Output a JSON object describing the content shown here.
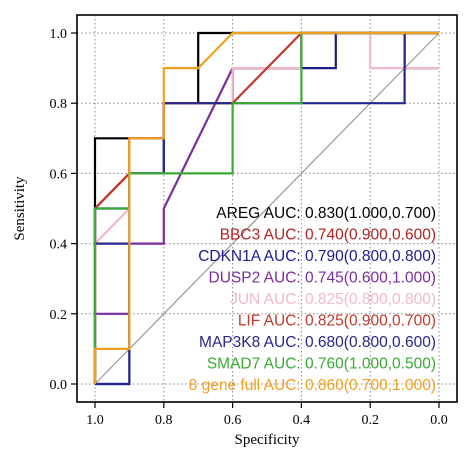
{
  "chart_data": {
    "type": "line",
    "xlabel": "Specificity",
    "ylabel": "Sensitivity",
    "xlim": [
      1.0,
      0.0
    ],
    "ylim": [
      0.0,
      1.0
    ],
    "x_ticks": [
      "1.0",
      "0.8",
      "0.6",
      "0.4",
      "0.2",
      "0.0"
    ],
    "y_ticks": [
      "0.0",
      "0.2",
      "0.4",
      "0.6",
      "0.8",
      "1.0"
    ],
    "grid": true,
    "legend_position": "bottom-right",
    "diagonal_color": "#999999",
    "series": [
      {
        "label": "AREG AUC: 0.830(1.000,0.700)",
        "color": "#000000",
        "points": [
          [
            1.0,
            0.0
          ],
          [
            1.0,
            0.7
          ],
          [
            0.8,
            0.7
          ],
          [
            0.8,
            0.8
          ],
          [
            0.7,
            0.8
          ],
          [
            0.7,
            1.0
          ],
          [
            0.0,
            1.0
          ]
        ]
      },
      {
        "label": "BBC3 AUC: 0.740(0.900,0.600)",
        "color": "#b22222",
        "points": [
          [
            1.0,
            0.0
          ],
          [
            1.0,
            0.5
          ],
          [
            0.9,
            0.6
          ],
          [
            0.9,
            0.7
          ],
          [
            0.8,
            0.7
          ],
          [
            0.8,
            0.8
          ],
          [
            0.6,
            0.8
          ],
          [
            0.6,
            0.9
          ],
          [
            0.4,
            0.9
          ],
          [
            0.4,
            1.0
          ],
          [
            0.0,
            1.0
          ]
        ]
      },
      {
        "label": "CDKN1A AUC: 0.790(0.800,0.800)",
        "color": "#1c1c8c",
        "points": [
          [
            1.0,
            0.0
          ],
          [
            0.9,
            0.0
          ],
          [
            0.9,
            0.6
          ],
          [
            0.8,
            0.6
          ],
          [
            0.8,
            0.8
          ],
          [
            0.6,
            0.8
          ],
          [
            0.6,
            0.9
          ],
          [
            0.3,
            0.9
          ],
          [
            0.3,
            1.0
          ],
          [
            0.1,
            1.0
          ],
          [
            0.1,
            0.9
          ],
          [
            0.0,
            0.9
          ]
        ]
      },
      {
        "label": "DUSP2 AUC: 0.745(0.600,1.000)",
        "color": "#7a2e9e",
        "points": [
          [
            1.0,
            0.0
          ],
          [
            1.0,
            0.2
          ],
          [
            0.9,
            0.2
          ],
          [
            0.9,
            0.4
          ],
          [
            0.8,
            0.4
          ],
          [
            0.8,
            0.5
          ],
          [
            0.6,
            0.9
          ],
          [
            0.4,
            0.9
          ],
          [
            0.4,
            1.0
          ],
          [
            0.0,
            1.0
          ]
        ]
      },
      {
        "label": "JUN AUC: 0.825(0.800,0.800)",
        "color": "#f3b9c9",
        "points": [
          [
            1.0,
            0.0
          ],
          [
            1.0,
            0.4
          ],
          [
            0.9,
            0.5
          ],
          [
            0.9,
            0.7
          ],
          [
            0.8,
            0.7
          ],
          [
            0.8,
            0.8
          ],
          [
            0.6,
            0.8
          ],
          [
            0.6,
            0.9
          ],
          [
            0.4,
            0.9
          ],
          [
            0.4,
            1.0
          ],
          [
            0.2,
            1.0
          ],
          [
            0.2,
            0.9
          ],
          [
            0.0,
            0.9
          ]
        ]
      },
      {
        "label": "LIF AUC: 0.825(0.900,0.700)",
        "color": "#c0392b",
        "points": [
          [
            1.0,
            0.0
          ],
          [
            1.0,
            0.5
          ],
          [
            0.9,
            0.6
          ],
          [
            0.9,
            0.7
          ],
          [
            0.8,
            0.7
          ],
          [
            0.8,
            0.8
          ],
          [
            0.6,
            0.8
          ],
          [
            0.4,
            1.0
          ],
          [
            0.0,
            1.0
          ]
        ]
      },
      {
        "label": "MAP3K8 AUC: 0.680(0.800,0.600)",
        "color": "#26268c",
        "points": [
          [
            1.0,
            0.0
          ],
          [
            0.9,
            0.0
          ],
          [
            0.9,
            0.4
          ],
          [
            1.0,
            0.4
          ],
          [
            1.0,
            0.5
          ],
          [
            0.9,
            0.5
          ],
          [
            0.9,
            0.6
          ],
          [
            0.8,
            0.6
          ],
          [
            0.8,
            0.8
          ],
          [
            0.6,
            0.8
          ],
          [
            0.5,
            0.8
          ],
          [
            0.4,
            0.8
          ],
          [
            0.1,
            0.8
          ],
          [
            0.1,
            1.0
          ],
          [
            0.0,
            1.0
          ]
        ]
      },
      {
        "label": "SMAD7 AUC: 0.760(1.000,0.500)",
        "color": "#3aaa35",
        "points": [
          [
            1.0,
            0.0
          ],
          [
            1.0,
            0.5
          ],
          [
            0.9,
            0.5
          ],
          [
            0.9,
            0.6
          ],
          [
            0.6,
            0.6
          ],
          [
            0.6,
            0.8
          ],
          [
            0.4,
            0.8
          ],
          [
            0.4,
            1.0
          ],
          [
            0.0,
            1.0
          ]
        ]
      },
      {
        "label": "8 gene full AUC: 0.860(0.700,1.000)",
        "color": "#f0a020",
        "points": [
          [
            1.0,
            0.0
          ],
          [
            1.0,
            0.1
          ],
          [
            0.9,
            0.1
          ],
          [
            0.9,
            0.7
          ],
          [
            0.8,
            0.7
          ],
          [
            0.8,
            0.9
          ],
          [
            0.7,
            0.9
          ],
          [
            0.7,
            0.9
          ],
          [
            0.6,
            1.0
          ],
          [
            0.6,
            1.0
          ],
          [
            0.0,
            1.0
          ]
        ]
      }
    ]
  }
}
